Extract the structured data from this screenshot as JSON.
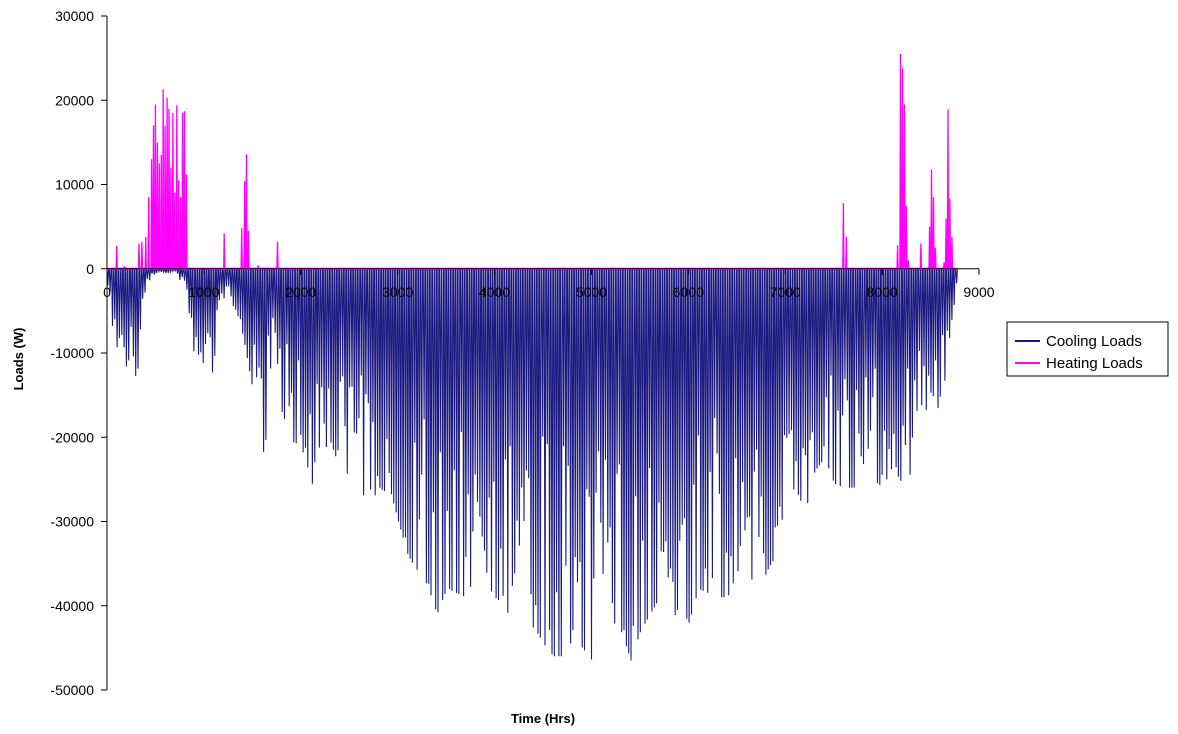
{
  "chart_data": {
    "type": "line",
    "title": "",
    "xlabel": "Time (Hrs)",
    "ylabel": "Loads (W)",
    "xlim": [
      0,
      9000
    ],
    "ylim": [
      -50000,
      30000
    ],
    "x_ticks": [
      0,
      1000,
      2000,
      3000,
      4000,
      5000,
      6000,
      7000,
      8000,
      9000
    ],
    "x_tick_labels": [
      "0",
      "1000",
      "2000",
      "3000",
      "4000",
      "5000",
      "6000",
      "7000",
      "8000",
      "9000"
    ],
    "y_ticks": [
      30000,
      20000,
      10000,
      0,
      -10000,
      -20000,
      -30000,
      -40000,
      -50000
    ],
    "y_tick_labels": [
      "30000",
      "20000",
      "10000",
      "0",
      "-10000",
      "-20000",
      "-30000",
      "-40000",
      "-50000"
    ],
    "grid": false,
    "legend_position": "right",
    "series": [
      {
        "name": "Cooling Loads",
        "color": "#1a1a80",
        "envelope_hours": [
          0,
          50,
          100,
          150,
          200,
          250,
          300,
          350,
          400,
          450,
          500,
          600,
          700,
          800,
          850,
          900,
          950,
          1000,
          1100,
          1200,
          1300,
          1400,
          1500,
          1600,
          1700,
          1800,
          1900,
          2000,
          2100,
          2200,
          2300,
          2400,
          2500,
          2600,
          2700,
          2800,
          2900,
          3000,
          3100,
          3200,
          3300,
          3400,
          3500,
          3600,
          3700,
          3800,
          3900,
          4000,
          4100,
          4200,
          4300,
          4400,
          4500,
          4600,
          4700,
          4800,
          4900,
          5000,
          5100,
          5200,
          5300,
          5400,
          5500,
          5600,
          5700,
          5800,
          5900,
          6000,
          6100,
          6200,
          6300,
          6400,
          6500,
          6600,
          6700,
          6800,
          6900,
          7000,
          7100,
          7200,
          7300,
          7400,
          7500,
          7600,
          7700,
          7800,
          7900,
          8000,
          8100,
          8200,
          8300,
          8400,
          8500,
          8600,
          8700,
          8760
        ],
        "envelope_min": [
          -2000,
          -7000,
          -9500,
          -9500,
          -12000,
          -15000,
          -14000,
          -5000,
          -2000,
          -1000,
          -500,
          -500,
          -500,
          -2500,
          -6000,
          -11000,
          -13500,
          -13500,
          -12000,
          -3500,
          -4500,
          -8000,
          -14500,
          -24000,
          -12500,
          -17000,
          -20500,
          -21000,
          -26000,
          -22000,
          -20500,
          -24000,
          -25500,
          -27500,
          -26000,
          -27500,
          -25500,
          -30000,
          -34000,
          -36000,
          -37500,
          -41000,
          -38000,
          -38500,
          -39000,
          -38000,
          -39500,
          -39000,
          -40000,
          -43000,
          -43500,
          -42500,
          -44500,
          -46000,
          -46000,
          -44000,
          -45000,
          -46500,
          -44500,
          -45000,
          -43000,
          -46500,
          -43000,
          -41000,
          -39000,
          -42500,
          -40000,
          -42000,
          -38000,
          -38500,
          -39000,
          -39000,
          -36000,
          -34000,
          -40000,
          -36000,
          -34000,
          -27000,
          -26000,
          -29000,
          -24000,
          -22500,
          -25500,
          -26000,
          -26000,
          -25000,
          -25000,
          -26000,
          -23500,
          -25500,
          -24500,
          -20000,
          -14500,
          -17500,
          -7000,
          -2500
        ],
        "pulse_hours": 24
      },
      {
        "name": "Heating Loads",
        "color": "#ff00ff",
        "spikes": [
          [
            100,
            2700
          ],
          [
            180,
            300
          ],
          [
            330,
            3000
          ],
          [
            360,
            3200
          ],
          [
            400,
            3800
          ],
          [
            430,
            8500
          ],
          [
            460,
            13000
          ],
          [
            480,
            17000
          ],
          [
            500,
            19500
          ],
          [
            520,
            15000
          ],
          [
            540,
            12500
          ],
          [
            560,
            13500
          ],
          [
            580,
            21300
          ],
          [
            600,
            17000
          ],
          [
            620,
            20300
          ],
          [
            640,
            19000
          ],
          [
            660,
            12000
          ],
          [
            680,
            18500
          ],
          [
            700,
            9000
          ],
          [
            720,
            19400
          ],
          [
            740,
            10500
          ],
          [
            760,
            8500
          ],
          [
            780,
            18500
          ],
          [
            800,
            18700
          ],
          [
            820,
            11200
          ],
          [
            1210,
            4200
          ],
          [
            1390,
            4800
          ],
          [
            1420,
            10400
          ],
          [
            1440,
            13600
          ],
          [
            1460,
            4500
          ],
          [
            1560,
            400
          ],
          [
            1760,
            3200
          ],
          [
            7600,
            7800
          ],
          [
            7630,
            3800
          ],
          [
            8160,
            2800
          ],
          [
            8190,
            25500
          ],
          [
            8210,
            23800
          ],
          [
            8230,
            19500
          ],
          [
            8250,
            7500
          ],
          [
            8270,
            1000
          ],
          [
            8400,
            3000
          ],
          [
            8490,
            5000
          ],
          [
            8510,
            11800
          ],
          [
            8530,
            8500
          ],
          [
            8550,
            2500
          ],
          [
            8640,
            800
          ],
          [
            8660,
            6000
          ],
          [
            8680,
            18900
          ],
          [
            8700,
            8300
          ],
          [
            8720,
            3800
          ]
        ]
      }
    ]
  }
}
